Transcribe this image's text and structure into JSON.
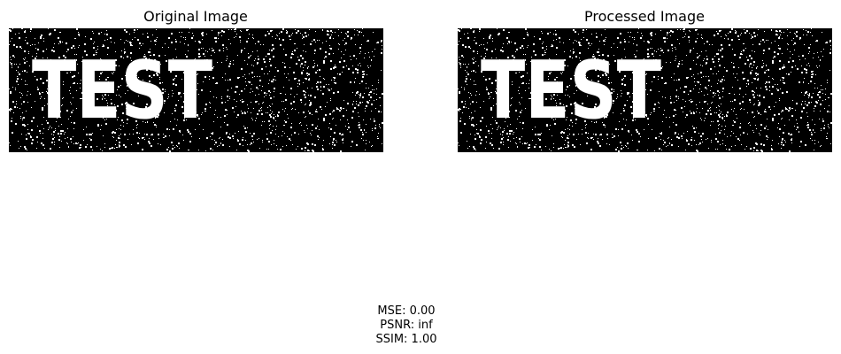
{
  "panels": [
    {
      "title": "Original Image",
      "image_text": "TEST"
    },
    {
      "title": "Processed Image",
      "image_text": "TEST"
    }
  ],
  "metrics": [
    "MSE: 0.00",
    "PSNR: inf",
    "SSIM: 1.00"
  ]
}
